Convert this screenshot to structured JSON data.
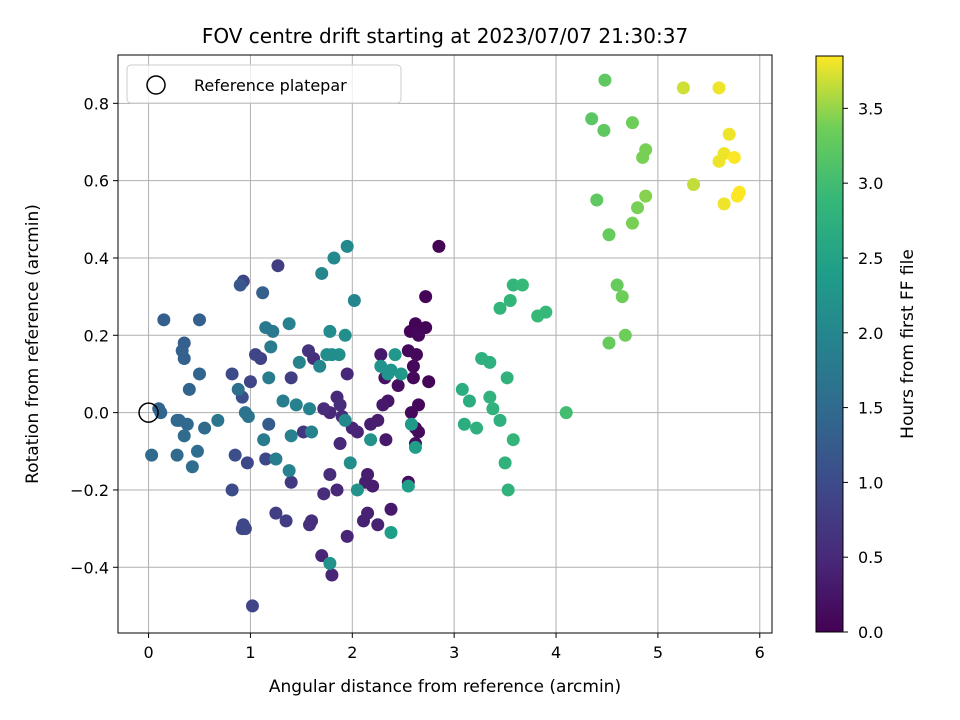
{
  "chart_data": {
    "type": "scatter",
    "title": "FOV centre drift starting at 2023/07/07 21:30:37",
    "xlabel": "Angular distance from reference (arcmin)",
    "ylabel": "Rotation from reference (arcmin)",
    "xlim": [
      -0.3,
      6.12
    ],
    "ylim": [
      -0.57,
      0.925
    ],
    "xticks": [
      0,
      1,
      2,
      3,
      4,
      5,
      6
    ],
    "yticks": [
      -0.4,
      -0.2,
      0.0,
      0.2,
      0.4,
      0.6,
      0.8
    ],
    "xtick_labels": [
      "0",
      "1",
      "2",
      "3",
      "4",
      "5",
      "6"
    ],
    "ytick_labels": [
      "−0.4",
      "−0.2",
      "0.0",
      "0.2",
      "0.4",
      "0.6",
      "0.8"
    ],
    "grid": true,
    "legend": {
      "position": "top-left",
      "entries": [
        "Reference platepar"
      ]
    },
    "reference_point": {
      "x": 0,
      "y": 0
    },
    "colorbar": {
      "label": "Hours from first FF file",
      "colormap": "viridis",
      "range": [
        0.0,
        3.85
      ],
      "ticks": [
        0.0,
        0.5,
        1.0,
        1.5,
        2.0,
        2.5,
        3.0,
        3.5
      ],
      "tick_labels": [
        "0.0",
        "0.5",
        "1.0",
        "1.5",
        "2.0",
        "2.5",
        "3.0",
        "3.5"
      ]
    },
    "points": [
      {
        "x": 2.85,
        "y": 0.43,
        "t": 0.02
      },
      {
        "x": 2.72,
        "y": 0.3,
        "t": 0.05
      },
      {
        "x": 2.62,
        "y": 0.23,
        "t": 0.05
      },
      {
        "x": 2.57,
        "y": 0.21,
        "t": 0.05
      },
      {
        "x": 2.72,
        "y": 0.22,
        "t": 0.05
      },
      {
        "x": 2.65,
        "y": 0.2,
        "t": 0.08
      },
      {
        "x": 2.63,
        "y": 0.15,
        "t": 0.08
      },
      {
        "x": 2.55,
        "y": 0.16,
        "t": 0.1
      },
      {
        "x": 2.6,
        "y": 0.12,
        "t": 0.1
      },
      {
        "x": 2.75,
        "y": 0.08,
        "t": 0.05
      },
      {
        "x": 2.6,
        "y": 0.09,
        "t": 0.1
      },
      {
        "x": 2.65,
        "y": 0.02,
        "t": 0.08
      },
      {
        "x": 2.58,
        "y": 0.0,
        "t": 0.1
      },
      {
        "x": 2.62,
        "y": -0.04,
        "t": 0.1
      },
      {
        "x": 2.65,
        "y": -0.05,
        "t": 0.12
      },
      {
        "x": 2.62,
        "y": -0.08,
        "t": 0.15
      },
      {
        "x": 2.55,
        "y": -0.18,
        "t": 0.15
      },
      {
        "x": 2.38,
        "y": -0.25,
        "t": 0.3
      },
      {
        "x": 2.45,
        "y": 0.07,
        "t": 0.15
      },
      {
        "x": 2.32,
        "y": 0.09,
        "t": 0.2
      },
      {
        "x": 2.35,
        "y": 0.03,
        "t": 0.25
      },
      {
        "x": 2.28,
        "y": 0.15,
        "t": 0.3
      },
      {
        "x": 2.3,
        "y": 0.02,
        "t": 0.3
      },
      {
        "x": 2.25,
        "y": -0.02,
        "t": 0.35
      },
      {
        "x": 2.33,
        "y": -0.07,
        "t": 0.3
      },
      {
        "x": 2.18,
        "y": -0.03,
        "t": 0.35
      },
      {
        "x": 2.15,
        "y": -0.16,
        "t": 0.35
      },
      {
        "x": 2.2,
        "y": -0.19,
        "t": 0.35
      },
      {
        "x": 2.13,
        "y": -0.18,
        "t": 0.35
      },
      {
        "x": 2.15,
        "y": -0.26,
        "t": 0.4
      },
      {
        "x": 2.11,
        "y": -0.28,
        "t": 0.4
      },
      {
        "x": 2.25,
        "y": -0.29,
        "t": 0.4
      },
      {
        "x": 1.95,
        "y": -0.32,
        "t": 0.45
      },
      {
        "x": 2.0,
        "y": -0.04,
        "t": 0.45
      },
      {
        "x": 2.05,
        "y": -0.05,
        "t": 0.45
      },
      {
        "x": 1.95,
        "y": 0.1,
        "t": 0.5
      },
      {
        "x": 1.85,
        "y": 0.04,
        "t": 0.5
      },
      {
        "x": 1.88,
        "y": 0.02,
        "t": 0.55
      },
      {
        "x": 1.9,
        "y": -0.01,
        "t": 0.55
      },
      {
        "x": 1.78,
        "y": 0.0,
        "t": 0.5
      },
      {
        "x": 1.72,
        "y": 0.01,
        "t": 0.55
      },
      {
        "x": 1.88,
        "y": -0.08,
        "t": 0.5
      },
      {
        "x": 1.85,
        "y": -0.2,
        "t": 0.5
      },
      {
        "x": 1.78,
        "y": -0.16,
        "t": 0.55
      },
      {
        "x": 1.72,
        "y": -0.21,
        "t": 0.55
      },
      {
        "x": 1.8,
        "y": -0.42,
        "t": 0.45
      },
      {
        "x": 1.7,
        "y": -0.37,
        "t": 0.45
      },
      {
        "x": 1.6,
        "y": -0.28,
        "t": 0.6
      },
      {
        "x": 1.58,
        "y": -0.29,
        "t": 0.6
      },
      {
        "x": 1.62,
        "y": 0.14,
        "t": 0.6
      },
      {
        "x": 1.57,
        "y": 0.16,
        "t": 0.65
      },
      {
        "x": 1.52,
        "y": -0.05,
        "t": 0.7
      },
      {
        "x": 1.4,
        "y": -0.18,
        "t": 0.75
      },
      {
        "x": 1.27,
        "y": 0.38,
        "t": 0.8
      },
      {
        "x": 1.35,
        "y": -0.28,
        "t": 0.8
      },
      {
        "x": 1.25,
        "y": -0.26,
        "t": 0.8
      },
      {
        "x": 1.4,
        "y": 0.09,
        "t": 0.8
      },
      {
        "x": 1.1,
        "y": 0.14,
        "t": 0.85
      },
      {
        "x": 1.05,
        "y": 0.15,
        "t": 0.9
      },
      {
        "x": 1.0,
        "y": 0.08,
        "t": 0.9
      },
      {
        "x": 0.93,
        "y": 0.34,
        "t": 0.9
      },
      {
        "x": 1.02,
        "y": -0.5,
        "t": 0.9
      },
      {
        "x": 0.93,
        "y": -0.29,
        "t": 0.95
      },
      {
        "x": 0.92,
        "y": -0.3,
        "t": 0.95
      },
      {
        "x": 0.95,
        "y": -0.3,
        "t": 0.95
      },
      {
        "x": 0.97,
        "y": -0.13,
        "t": 0.95
      },
      {
        "x": 1.15,
        "y": -0.12,
        "t": 0.95
      },
      {
        "x": 0.82,
        "y": -0.2,
        "t": 1.0
      },
      {
        "x": 0.82,
        "y": 0.1,
        "t": 1.0
      },
      {
        "x": 0.85,
        "y": -0.11,
        "t": 1.05
      },
      {
        "x": 0.92,
        "y": 0.04,
        "t": 1.05
      },
      {
        "x": 0.9,
        "y": 0.33,
        "t": 1.2
      },
      {
        "x": 1.12,
        "y": 0.31,
        "t": 1.3
      },
      {
        "x": 1.18,
        "y": -0.03,
        "t": 1.25
      },
      {
        "x": 0.5,
        "y": 0.24,
        "t": 1.3
      },
      {
        "x": 0.15,
        "y": 0.24,
        "t": 1.3
      },
      {
        "x": 0.35,
        "y": 0.18,
        "t": 1.3
      },
      {
        "x": 0.33,
        "y": 0.16,
        "t": 1.35
      },
      {
        "x": 0.35,
        "y": 0.14,
        "t": 1.35
      },
      {
        "x": 0.5,
        "y": 0.1,
        "t": 1.4
      },
      {
        "x": 0.4,
        "y": 0.06,
        "t": 1.4
      },
      {
        "x": 0.1,
        "y": 0.01,
        "t": 1.4
      },
      {
        "x": 0.12,
        "y": 0.0,
        "t": 1.4
      },
      {
        "x": 0.3,
        "y": -0.02,
        "t": 1.45
      },
      {
        "x": 0.28,
        "y": -0.02,
        "t": 1.45
      },
      {
        "x": 0.38,
        "y": -0.03,
        "t": 1.45
      },
      {
        "x": 0.35,
        "y": -0.06,
        "t": 1.5
      },
      {
        "x": 0.55,
        "y": -0.04,
        "t": 1.5
      },
      {
        "x": 0.03,
        "y": -0.11,
        "t": 1.5
      },
      {
        "x": 0.28,
        "y": -0.11,
        "t": 1.5
      },
      {
        "x": 0.48,
        "y": -0.1,
        "t": 1.55
      },
      {
        "x": 0.43,
        "y": -0.14,
        "t": 1.55
      },
      {
        "x": 0.88,
        "y": 0.06,
        "t": 1.6
      },
      {
        "x": 0.95,
        "y": 0.0,
        "t": 1.65
      },
      {
        "x": 0.98,
        "y": -0.01,
        "t": 1.65
      },
      {
        "x": 0.68,
        "y": -0.02,
        "t": 1.7
      },
      {
        "x": 1.15,
        "y": 0.22,
        "t": 1.75
      },
      {
        "x": 1.22,
        "y": 0.21,
        "t": 1.75
      },
      {
        "x": 1.2,
        "y": 0.17,
        "t": 1.8
      },
      {
        "x": 1.18,
        "y": 0.09,
        "t": 1.8
      },
      {
        "x": 1.13,
        "y": -0.07,
        "t": 1.8
      },
      {
        "x": 1.25,
        "y": -0.12,
        "t": 1.85
      },
      {
        "x": 1.32,
        "y": 0.03,
        "t": 1.85
      },
      {
        "x": 1.38,
        "y": 0.23,
        "t": 1.9
      },
      {
        "x": 1.45,
        "y": 0.02,
        "t": 1.9
      },
      {
        "x": 1.4,
        "y": -0.06,
        "t": 1.9
      },
      {
        "x": 1.38,
        "y": -0.15,
        "t": 1.9
      },
      {
        "x": 1.48,
        "y": 0.13,
        "t": 1.95
      },
      {
        "x": 1.58,
        "y": 0.01,
        "t": 1.95
      },
      {
        "x": 1.6,
        "y": -0.05,
        "t": 1.95
      },
      {
        "x": 1.7,
        "y": 0.36,
        "t": 2.0
      },
      {
        "x": 1.68,
        "y": 0.12,
        "t": 2.0
      },
      {
        "x": 1.82,
        "y": 0.4,
        "t": 2.05
      },
      {
        "x": 1.95,
        "y": 0.43,
        "t": 2.05
      },
      {
        "x": 1.78,
        "y": 0.21,
        "t": 2.1
      },
      {
        "x": 1.75,
        "y": 0.15,
        "t": 2.1
      },
      {
        "x": 1.8,
        "y": 0.15,
        "t": 2.1
      },
      {
        "x": 1.87,
        "y": 0.15,
        "t": 2.15
      },
      {
        "x": 1.93,
        "y": 0.2,
        "t": 2.15
      },
      {
        "x": 1.93,
        "y": -0.02,
        "t": 2.05
      },
      {
        "x": 2.02,
        "y": 0.29,
        "t": 2.0
      },
      {
        "x": 1.98,
        "y": -0.13,
        "t": 2.1
      },
      {
        "x": 1.78,
        "y": -0.39,
        "t": 2.2
      },
      {
        "x": 2.05,
        "y": -0.2,
        "t": 2.2
      },
      {
        "x": 2.18,
        "y": -0.07,
        "t": 2.2
      },
      {
        "x": 2.28,
        "y": 0.12,
        "t": 2.25
      },
      {
        "x": 2.35,
        "y": 0.1,
        "t": 2.25
      },
      {
        "x": 2.38,
        "y": 0.11,
        "t": 2.25
      },
      {
        "x": 2.42,
        "y": 0.15,
        "t": 2.3
      },
      {
        "x": 2.48,
        "y": 0.1,
        "t": 2.3
      },
      {
        "x": 2.58,
        "y": -0.03,
        "t": 2.35
      },
      {
        "x": 2.62,
        "y": -0.09,
        "t": 2.4
      },
      {
        "x": 2.55,
        "y": -0.19,
        "t": 2.4
      },
      {
        "x": 2.38,
        "y": -0.31,
        "t": 2.4
      },
      {
        "x": 3.08,
        "y": 0.06,
        "t": 2.7
      },
      {
        "x": 3.1,
        "y": -0.03,
        "t": 2.7
      },
      {
        "x": 3.15,
        "y": 0.03,
        "t": 2.7
      },
      {
        "x": 3.22,
        "y": -0.04,
        "t": 2.75
      },
      {
        "x": 3.27,
        "y": 0.14,
        "t": 2.75
      },
      {
        "x": 3.35,
        "y": 0.13,
        "t": 2.75
      },
      {
        "x": 3.35,
        "y": 0.04,
        "t": 2.8
      },
      {
        "x": 3.38,
        "y": 0.01,
        "t": 2.8
      },
      {
        "x": 3.45,
        "y": -0.02,
        "t": 2.75
      },
      {
        "x": 3.52,
        "y": 0.09,
        "t": 2.8
      },
      {
        "x": 3.5,
        "y": -0.13,
        "t": 2.8
      },
      {
        "x": 3.53,
        "y": -0.2,
        "t": 2.8
      },
      {
        "x": 3.58,
        "y": -0.07,
        "t": 2.85
      },
      {
        "x": 3.45,
        "y": 0.27,
        "t": 2.85
      },
      {
        "x": 3.55,
        "y": 0.29,
        "t": 2.85
      },
      {
        "x": 3.58,
        "y": 0.33,
        "t": 2.85
      },
      {
        "x": 3.67,
        "y": 0.33,
        "t": 2.9
      },
      {
        "x": 3.82,
        "y": 0.25,
        "t": 2.9
      },
      {
        "x": 3.9,
        "y": 0.26,
        "t": 2.9
      },
      {
        "x": 4.1,
        "y": 0.0,
        "t": 3.0
      },
      {
        "x": 4.35,
        "y": 0.76,
        "t": 3.2
      },
      {
        "x": 4.4,
        "y": 0.55,
        "t": 3.25
      },
      {
        "x": 4.48,
        "y": 0.86,
        "t": 3.25
      },
      {
        "x": 4.47,
        "y": 0.73,
        "t": 3.25
      },
      {
        "x": 4.52,
        "y": 0.46,
        "t": 3.3
      },
      {
        "x": 4.52,
        "y": 0.18,
        "t": 3.3
      },
      {
        "x": 4.6,
        "y": 0.33,
        "t": 3.3
      },
      {
        "x": 4.65,
        "y": 0.3,
        "t": 3.35
      },
      {
        "x": 4.68,
        "y": 0.2,
        "t": 3.35
      },
      {
        "x": 4.75,
        "y": 0.49,
        "t": 3.4
      },
      {
        "x": 4.75,
        "y": 0.75,
        "t": 3.35
      },
      {
        "x": 4.8,
        "y": 0.53,
        "t": 3.4
      },
      {
        "x": 4.85,
        "y": 0.66,
        "t": 3.4
      },
      {
        "x": 4.88,
        "y": 0.68,
        "t": 3.4
      },
      {
        "x": 4.88,
        "y": 0.56,
        "t": 3.45
      },
      {
        "x": 5.25,
        "y": 0.84,
        "t": 3.7
      },
      {
        "x": 5.35,
        "y": 0.59,
        "t": 3.65
      },
      {
        "x": 5.6,
        "y": 0.84,
        "t": 3.8
      },
      {
        "x": 5.6,
        "y": 0.65,
        "t": 3.8
      },
      {
        "x": 5.65,
        "y": 0.67,
        "t": 3.8
      },
      {
        "x": 5.65,
        "y": 0.54,
        "t": 3.8
      },
      {
        "x": 5.7,
        "y": 0.72,
        "t": 3.8
      },
      {
        "x": 5.75,
        "y": 0.66,
        "t": 3.85
      },
      {
        "x": 5.78,
        "y": 0.56,
        "t": 3.85
      },
      {
        "x": 5.8,
        "y": 0.57,
        "t": 3.85
      }
    ]
  }
}
